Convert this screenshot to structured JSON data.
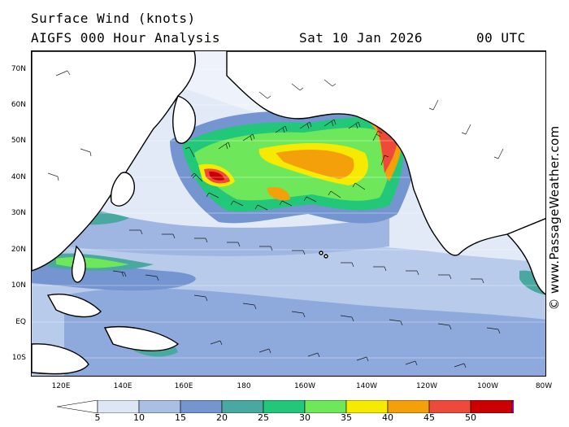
{
  "header": {
    "title": "Surface Wind (knots)",
    "subtitle": "AIGFS 000 Hour Analysis",
    "datetime": "Sat 10 Jan 2026",
    "utc": "00 UTC"
  },
  "credit": "© www.PassageWeather.com",
  "map": {
    "lat_labels": [
      "70N",
      "60N",
      "50N",
      "40N",
      "30N",
      "20N",
      "10N",
      "EQ",
      "10S"
    ],
    "lon_labels": [
      "120E",
      "140E",
      "160E",
      "180",
      "160W",
      "140W",
      "120W",
      "100W",
      "80W"
    ]
  },
  "legend": {
    "ticks": [
      "5",
      "10",
      "15",
      "20",
      "25",
      "30",
      "35",
      "40",
      "45",
      "50"
    ],
    "colors": [
      "#ffffff",
      "#dde6f5",
      "#a9bfe4",
      "#7595d1",
      "#49a8a0",
      "#22c77a",
      "#6ee85a",
      "#f6ea00",
      "#f4a00a",
      "#ee4a3a",
      "#cc0000",
      "#b000c8"
    ]
  }
}
